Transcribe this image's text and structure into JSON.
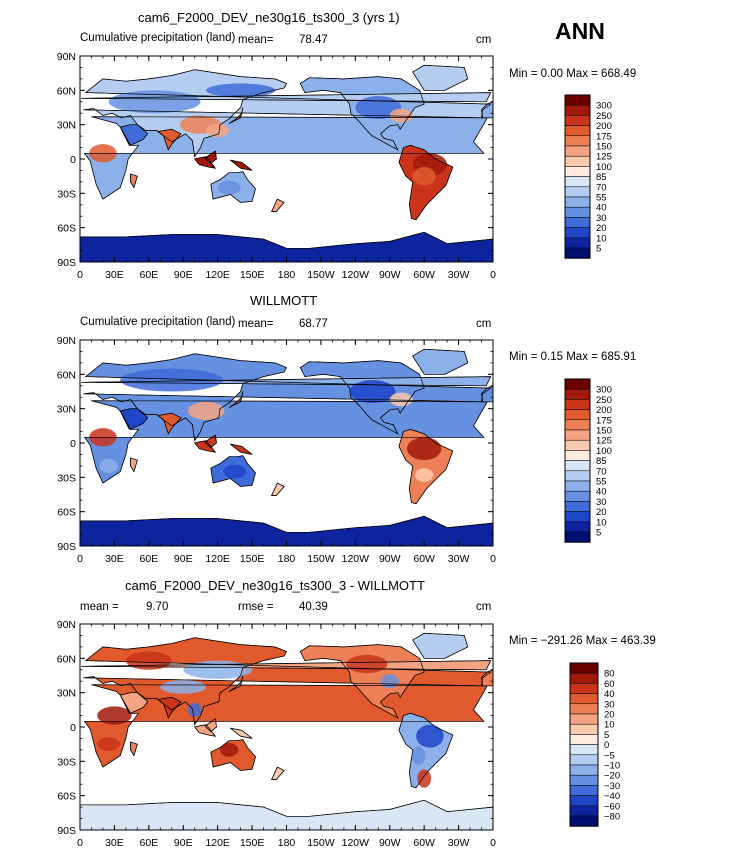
{
  "season": "ANN",
  "panels": [
    {
      "id": "model",
      "title": "cam6_F2000_DEV_ne30g16_ts300_3 (yrs 1)",
      "left_label": "Cumulative precipitation (land)",
      "stat_label": "mean=",
      "stat_value": "78.47",
      "units": "cm",
      "minmax": "Min =    0.00  Max =  668.49",
      "colorbar_labels": [
        "300",
        "250",
        "200",
        "175",
        "150",
        "125",
        "100",
        "85",
        "70",
        "55",
        "40",
        "30",
        "20",
        "10",
        "5"
      ],
      "colors": [
        "#6b0000",
        "#a1190a",
        "#c9341a",
        "#e05a2e",
        "#ee8058",
        "#f5a483",
        "#fac8ad",
        "#fdebe0",
        "#d9e6f6",
        "#b4cdf0",
        "#8cb1ea",
        "#6690e0",
        "#3f6cd9",
        "#1f45c8",
        "#0d249e",
        "#000e70"
      ]
    },
    {
      "id": "obs",
      "title": "WILLMOTT",
      "left_label": "Cumulative precipitation (land)",
      "stat_label": "mean=",
      "stat_value": "68.77",
      "units": "cm",
      "minmax": "Min =    0.15  Max =  685.91",
      "colorbar_labels": [
        "300",
        "250",
        "200",
        "175",
        "150",
        "125",
        "100",
        "85",
        "70",
        "55",
        "40",
        "30",
        "20",
        "10",
        "5"
      ],
      "colors": [
        "#6b0000",
        "#a1190a",
        "#c9341a",
        "#e05a2e",
        "#ee8058",
        "#f5a483",
        "#fac8ad",
        "#fdebe0",
        "#d9e6f6",
        "#b4cdf0",
        "#8cb1ea",
        "#6690e0",
        "#3f6cd9",
        "#1f45c8",
        "#0d249e",
        "#000e70"
      ]
    },
    {
      "id": "diff",
      "title": "cam6_F2000_DEV_ne30g16_ts300_3 - WILLMOTT",
      "left_label": "mean =",
      "left_value": "9.70",
      "stat_label": "rmse =",
      "stat_value": "40.39",
      "units": "cm",
      "minmax": "Min = −291.26  Max =  463.39",
      "colorbar_labels": [
        "80",
        "60",
        "40",
        "30",
        "20",
        "10",
        "5",
        "0",
        "−5",
        "−10",
        "−20",
        "−30",
        "−40",
        "−60",
        "−80"
      ],
      "colors": [
        "#6b0000",
        "#a1190a",
        "#c9341a",
        "#e05a2e",
        "#ee8058",
        "#f5a483",
        "#fac8ad",
        "#fdebe0",
        "#d9e6f6",
        "#b4cdf0",
        "#8cb1ea",
        "#6690e0",
        "#3f6cd9",
        "#1f45c8",
        "#0d249e",
        "#000e70"
      ]
    }
  ],
  "lat_labels": [
    "90N",
    "60N",
    "30N",
    "0",
    "30S",
    "60S",
    "90S"
  ],
  "lon_labels": [
    "0",
    "30E",
    "60E",
    "90E",
    "120E",
    "150E",
    "180",
    "150W",
    "120W",
    "90W",
    "60W",
    "30W",
    "0"
  ]
}
